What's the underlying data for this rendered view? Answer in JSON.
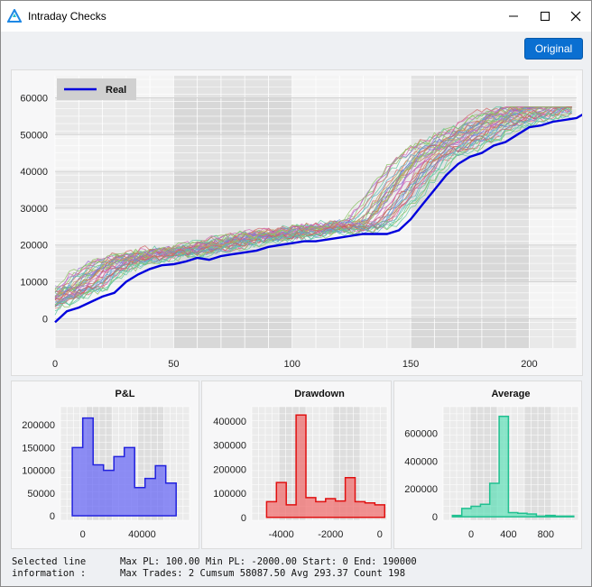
{
  "window": {
    "title": "Intraday Checks"
  },
  "toolbar": {
    "original_label": "Original"
  },
  "info": {
    "label_line1": "Selected line",
    "label_line2": "information :",
    "line1": "Max PL: 100.00 Min PL: -2000.00 Start: 0 End: 190000",
    "line2": "Max Trades: 2 Cumsum 58087.50 Avg 293.37 Count 198"
  },
  "colors": {
    "real": "#0000dd",
    "pl": "#6f6ff5",
    "drawdown": "#f07070",
    "average": "#5fe0b8",
    "accent": "#0a6fd1"
  },
  "chart_data": [
    {
      "type": "line",
      "legend": [
        "Real"
      ],
      "legend_position": "top-left",
      "xlim": [
        0,
        220
      ],
      "ylim": [
        -8000,
        66000
      ],
      "xticks": [
        0,
        50,
        100,
        150,
        200
      ],
      "yticks": [
        0,
        10000,
        20000,
        30000,
        40000,
        50000,
        60000
      ],
      "grid": true,
      "series": [
        {
          "name": "Real",
          "x": [
            0,
            5,
            10,
            15,
            20,
            25,
            30,
            35,
            40,
            45,
            50,
            55,
            60,
            65,
            70,
            75,
            80,
            85,
            90,
            95,
            100,
            105,
            110,
            115,
            120,
            125,
            130,
            135,
            140,
            145,
            150,
            155,
            160,
            165,
            170,
            175,
            180,
            185,
            190,
            195,
            200,
            205,
            210,
            215,
            220,
            224
          ],
          "y": [
            -1000,
            2000,
            3000,
            4500,
            6000,
            7000,
            10000,
            12000,
            13500,
            14500,
            14800,
            15500,
            16500,
            16000,
            17000,
            17500,
            18000,
            18500,
            19500,
            20000,
            20500,
            21000,
            21000,
            21500,
            22000,
            22500,
            23000,
            23000,
            23000,
            24000,
            27000,
            31000,
            35000,
            39000,
            42000,
            44000,
            45000,
            47000,
            48000,
            50000,
            52000,
            52500,
            53500,
            54000,
            54500,
            56000
          ]
        }
      ]
    },
    {
      "type": "area",
      "title": "P&L",
      "x": [
        -7000,
        0,
        7000,
        14000,
        21000,
        28000,
        35000,
        42000,
        49000,
        56000
      ],
      "values": [
        150000,
        215000,
        112000,
        100000,
        130000,
        150000,
        62000,
        82000,
        110000,
        72000
      ],
      "xticks": [
        0,
        40000
      ],
      "yticks": [
        0,
        50000,
        100000,
        150000,
        200000
      ]
    },
    {
      "type": "area",
      "title": "Drawdown",
      "x": [
        -4600,
        -4200,
        -3800,
        -3400,
        -3000,
        -2600,
        -2200,
        -1800,
        -1400,
        -1000,
        -600,
        -200
      ],
      "values": [
        65000,
        145000,
        52000,
        425000,
        82000,
        65000,
        78000,
        68000,
        165000,
        65000,
        60000,
        52000
      ],
      "xticks": [
        -4000,
        -2000,
        0
      ],
      "yticks": [
        0,
        100000,
        200000,
        300000,
        400000
      ]
    },
    {
      "type": "area",
      "title": "Average",
      "x": [
        -200,
        -100,
        0,
        100,
        200,
        300,
        400,
        500,
        600,
        700,
        800,
        900,
        1000
      ],
      "values": [
        10000,
        60000,
        75000,
        90000,
        240000,
        720000,
        30000,
        25000,
        20000,
        5000,
        10000,
        5000,
        5000
      ],
      "xticks": [
        0,
        400,
        800
      ],
      "yticks": [
        0,
        200000,
        400000,
        600000
      ]
    }
  ]
}
